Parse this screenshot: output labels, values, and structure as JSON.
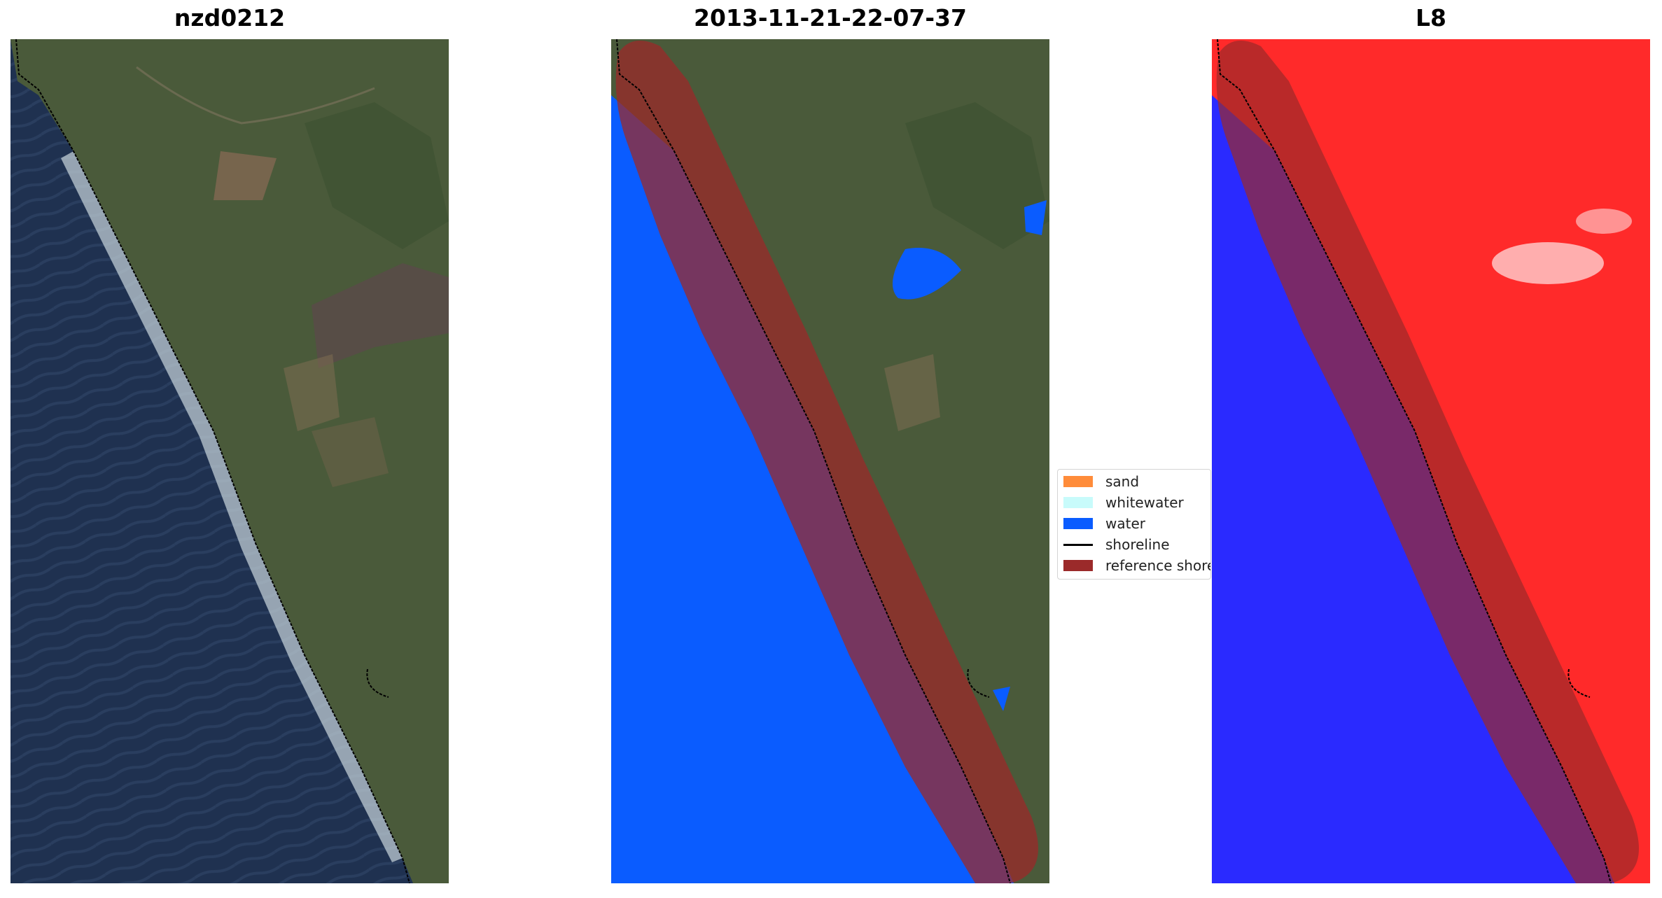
{
  "panels": [
    {
      "title": "nzd0212"
    },
    {
      "title": "2013-11-21-22-07-37"
    },
    {
      "title": "L8"
    }
  ],
  "legend": [
    {
      "label": "sand",
      "color": "#ff8c3a"
    },
    {
      "label": "whitewater",
      "color": "#c8fbfb"
    },
    {
      "label": "water",
      "color": "#0a5cff"
    },
    {
      "label": "shoreline",
      "color": "#000000"
    },
    {
      "label": "reference shoreline buffer",
      "color": "#9b2a2a"
    }
  ]
}
